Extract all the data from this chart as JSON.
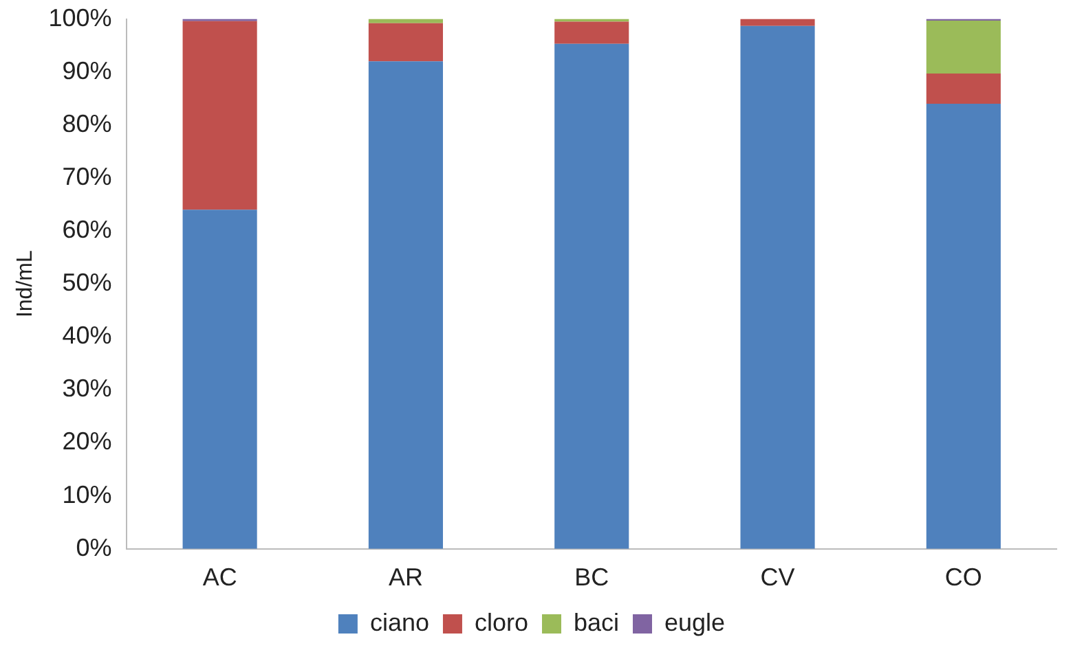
{
  "chart_data": {
    "type": "bar",
    "stacked": true,
    "ylabel": "Ind/mL",
    "categories": [
      "AC",
      "AR",
      "BC",
      "CV",
      "CO"
    ],
    "series": [
      {
        "name": "ciano",
        "color": "#4f81bd",
        "values": [
          64,
          92,
          95.3,
          98.7,
          84
        ]
      },
      {
        "name": "cloro",
        "color": "#c0504d",
        "values": [
          35.6,
          7.2,
          4.2,
          1.3,
          5.7
        ]
      },
      {
        "name": "baci",
        "color": "#9bbb59",
        "values": [
          0,
          0.8,
          0.5,
          0,
          10
        ]
      },
      {
        "name": "eugle",
        "color": "#8064a2",
        "values": [
          0.4,
          0,
          0,
          0,
          0.3
        ]
      }
    ],
    "ylim": [
      0,
      100
    ],
    "yticks": [
      {
        "value": 0,
        "label": "0%"
      },
      {
        "value": 10,
        "label": "10%"
      },
      {
        "value": 20,
        "label": "20%"
      },
      {
        "value": 30,
        "label": "30%"
      },
      {
        "value": 40,
        "label": "40%"
      },
      {
        "value": 50,
        "label": "50%"
      },
      {
        "value": 60,
        "label": "60%"
      },
      {
        "value": 70,
        "label": "70%"
      },
      {
        "value": 80,
        "label": "80%"
      },
      {
        "value": 90,
        "label": "90%"
      },
      {
        "value": 100,
        "label": "100%"
      }
    ],
    "grid": false,
    "legend": "bottom"
  }
}
